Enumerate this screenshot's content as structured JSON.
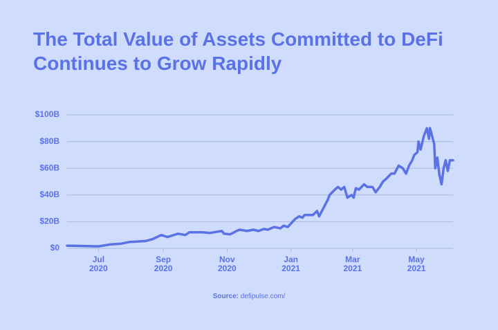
{
  "chart_data": {
    "type": "line",
    "title": [
      "The Total Value of Assets Committed to DeFi",
      "Continues to Grow Rapidly"
    ],
    "source_label": "Source:",
    "source": "defipulse.com/",
    "color": "#5a72e4",
    "grid": true,
    "ylim": [
      0,
      100
    ],
    "yticks": [
      {
        "value": 0,
        "label": "$0"
      },
      {
        "value": 20,
        "label": "$20B"
      },
      {
        "value": 40,
        "label": "$40B"
      },
      {
        "value": 60,
        "label": "$60B"
      },
      {
        "value": 80,
        "label": "$80B"
      },
      {
        "value": 100,
        "label": "$100B"
      }
    ],
    "xlim": [
      "2020-06-01",
      "2021-06-05"
    ],
    "xticks": [
      {
        "value": "2020-07-01",
        "label": "Jul",
        "year": "2020"
      },
      {
        "value": "2020-09-01",
        "label": "Sep",
        "year": "2020"
      },
      {
        "value": "2020-11-01",
        "label": "Nov",
        "year": "2020"
      },
      {
        "value": "2021-01-01",
        "label": "Jan",
        "year": "2021"
      },
      {
        "value": "2021-03-01",
        "label": "Mar",
        "year": "2021"
      },
      {
        "value": "2021-05-01",
        "label": "May",
        "year": "2021"
      }
    ],
    "x": [
      "2020-06-01",
      "2020-07-01",
      "2020-07-13",
      "2020-07-23",
      "2020-07-30",
      "2020-08-15",
      "2020-08-22",
      "2020-08-30",
      "2020-09-05",
      "2020-09-15",
      "2020-09-22",
      "2020-09-26",
      "2020-10-08",
      "2020-10-15",
      "2020-10-27",
      "2020-10-29",
      "2020-11-04",
      "2020-11-10",
      "2020-11-13",
      "2020-11-20",
      "2020-11-26",
      "2020-12-01",
      "2020-12-06",
      "2020-12-10",
      "2020-12-16",
      "2020-12-22",
      "2020-12-25",
      "2020-12-29",
      "2021-01-05",
      "2021-01-09",
      "2021-01-12",
      "2021-01-14",
      "2021-01-22",
      "2021-01-26",
      "2021-01-28",
      "2021-02-01",
      "2021-02-05",
      "2021-02-07",
      "2021-02-12",
      "2021-02-15",
      "2021-02-18",
      "2021-02-21",
      "2021-02-24",
      "2021-02-28",
      "2021-03-02",
      "2021-03-04",
      "2021-03-07",
      "2021-03-12",
      "2021-03-15",
      "2021-03-20",
      "2021-03-23",
      "2021-03-27",
      "2021-03-30",
      "2021-04-02",
      "2021-04-07",
      "2021-04-10",
      "2021-04-14",
      "2021-04-18",
      "2021-04-21",
      "2021-04-24",
      "2021-04-27",
      "2021-04-29",
      "2021-05-02",
      "2021-05-03",
      "2021-05-05",
      "2021-05-08",
      "2021-05-10",
      "2021-05-11",
      "2021-05-13",
      "2021-05-14",
      "2021-05-16",
      "2021-05-18",
      "2021-05-19",
      "2021-05-21",
      "2021-05-23",
      "2021-05-25",
      "2021-05-27",
      "2021-05-29",
      "2021-05-31",
      "2021-06-02",
      "2021-06-05"
    ],
    "values": [
      2,
      1.5,
      3,
      3.5,
      4.7,
      5.5,
      7,
      10,
      8.5,
      11,
      10,
      12,
      12,
      11.5,
      13,
      11,
      10.5,
      13,
      14,
      13,
      14,
      13,
      14.5,
      14,
      16,
      15,
      17,
      16,
      22,
      24,
      23,
      25,
      25,
      28,
      24,
      30,
      36,
      40,
      44,
      46,
      44,
      46,
      38,
      40,
      38,
      45,
      44,
      48,
      46,
      46,
      42,
      46,
      50,
      52,
      56,
      56,
      62,
      60,
      56,
      62,
      66,
      70,
      72,
      80,
      74,
      84,
      88,
      90,
      82,
      90,
      84,
      78,
      60,
      68,
      55,
      48,
      60,
      66,
      58,
      66,
      66
    ]
  }
}
